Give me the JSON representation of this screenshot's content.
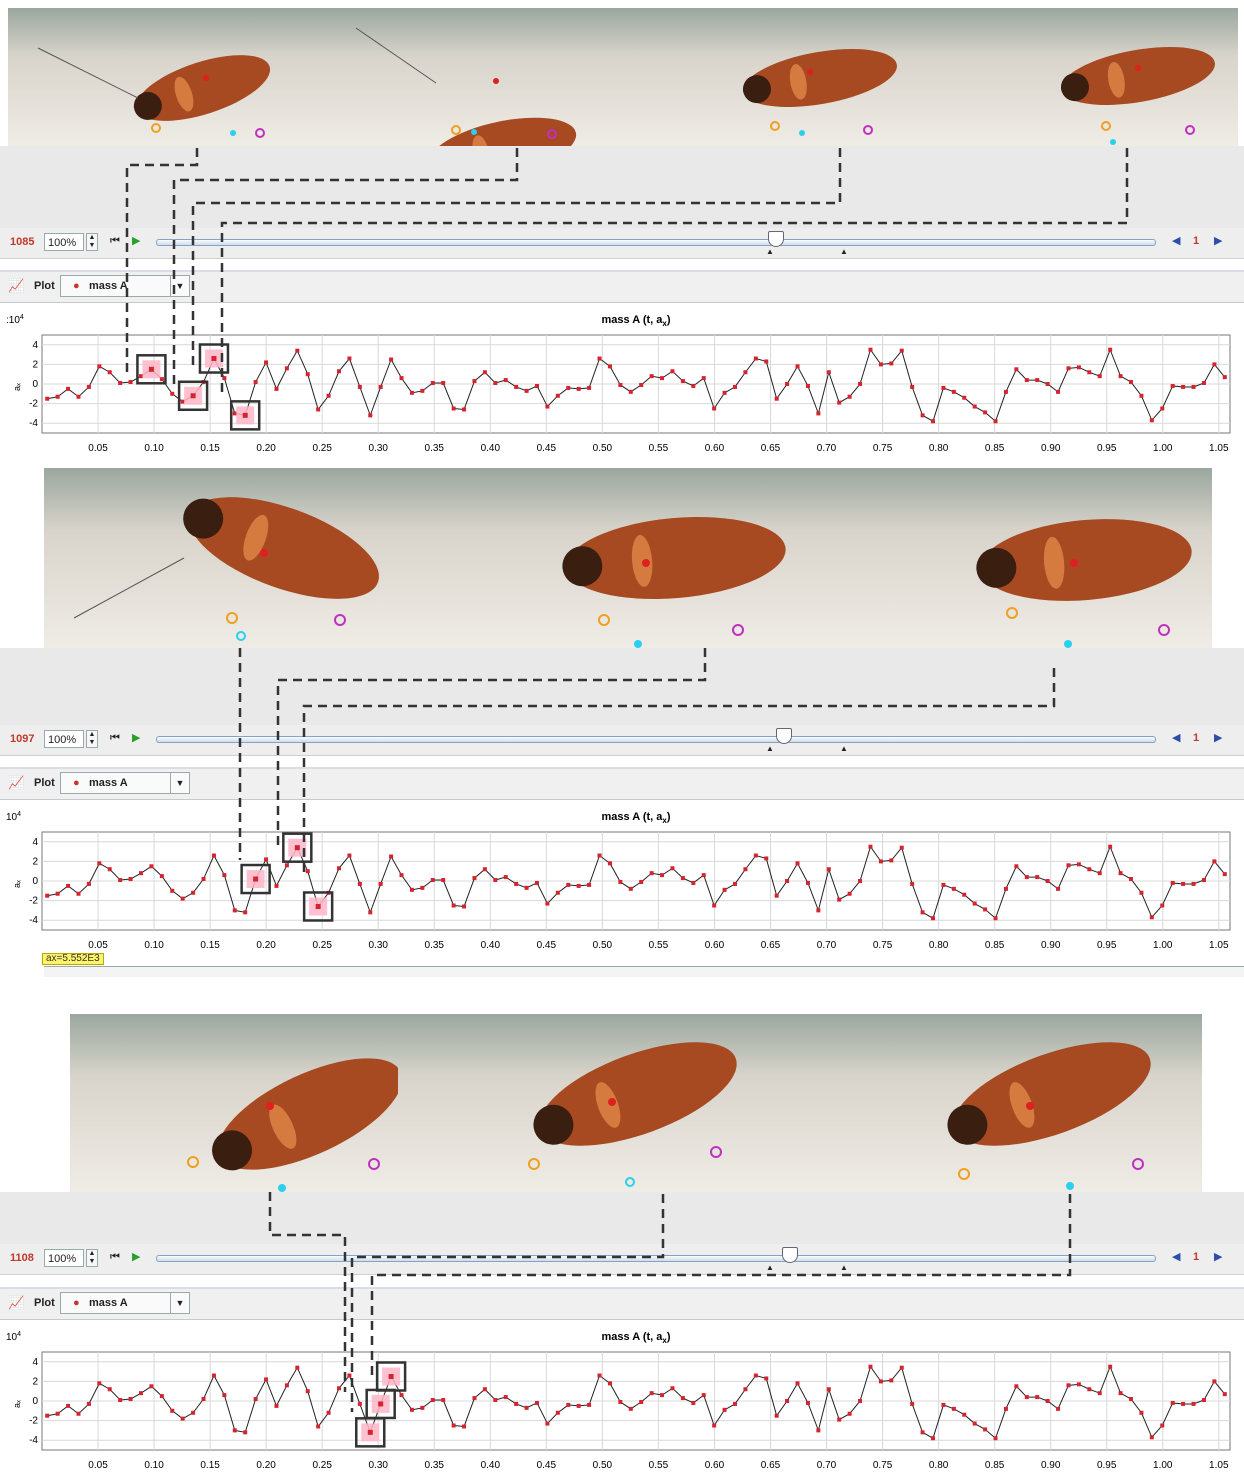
{
  "panels": [
    {
      "photos": 4,
      "frame": "1085",
      "zoom": "100%",
      "step": "1",
      "plot_label": "Plot",
      "series_selector": "mass A",
      "graph_title": "mass A (t, a",
      "graph_title_sub": "x",
      "graph_title_end": ")",
      "exponent_prefix": ":10",
      "exponent_sup": "4",
      "y_axis_label": "aₓ"
    },
    {
      "photos": 3,
      "frame": "1097",
      "zoom": "100%",
      "step": "1",
      "plot_label": "Plot",
      "series_selector": "mass A",
      "graph_title": "mass A (t, a",
      "graph_title_sub": "x",
      "graph_title_end": ")",
      "exponent_prefix": "10",
      "exponent_sup": "4",
      "y_axis_label": "aₓ",
      "tooltip": "ax=5.552E3"
    },
    {
      "photos": 3,
      "frame": "1108",
      "zoom": "100%",
      "step": "1",
      "plot_label": "Plot",
      "series_selector": "mass A",
      "graph_title": "mass A (t, a",
      "graph_title_sub": "x",
      "graph_title_end": ")",
      "exponent_prefix": "10",
      "exponent_sup": "4",
      "y_axis_label": "aₓ"
    }
  ],
  "icons": {
    "plot": "line-chart-icon",
    "first": "skip-to-start-icon",
    "play": "play-icon",
    "prev": "step-back-icon",
    "next": "step-forward-icon"
  },
  "colors": {
    "series": "#d3242f",
    "line": "#222222",
    "frame_number": "#c0392b",
    "highlight": "#ffb6c8"
  },
  "chart_data": [
    {
      "type": "line",
      "title": "mass A (t, aₓ)",
      "ylabel": "aₓ",
      "y_exponent": "10^4",
      "xlim": [
        0.0,
        1.06
      ],
      "ylim": [
        -5,
        5
      ],
      "xticks": [
        0.05,
        0.1,
        0.15,
        0.2,
        0.25,
        0.3,
        0.35,
        0.4,
        0.45,
        0.5,
        0.55,
        0.6,
        0.65,
        0.7,
        0.75,
        0.8,
        0.85,
        0.9,
        0.95,
        1.0,
        1.05
      ],
      "xtick_labels": [
        "0.05",
        "0.10",
        "0.15",
        "0.20",
        "0.25",
        "0.30",
        "0.35",
        "0.40",
        "0.45",
        "0.50",
        "0.55",
        "0.60",
        "0.65",
        "0.70",
        "0.75",
        "0.80",
        "0.85",
        "0.90",
        "0.95",
        "1.00",
        "1.05"
      ],
      "yticks": [
        -4,
        -2,
        0,
        2,
        4
      ],
      "ytick_labels": [
        "-4",
        "-2",
        "0",
        "2",
        "4"
      ],
      "grid": true,
      "highlight_x": [
        0.095,
        0.135,
        0.155,
        0.18
      ]
    },
    {
      "type": "line",
      "title": "mass A (t, aₓ)",
      "ylabel": "aₓ",
      "y_exponent": "10^4",
      "xlim": [
        0.0,
        1.06
      ],
      "ylim": [
        -5,
        5
      ],
      "xticks": [
        0.05,
        0.1,
        0.15,
        0.2,
        0.25,
        0.3,
        0.35,
        0.4,
        0.45,
        0.5,
        0.55,
        0.6,
        0.65,
        0.7,
        0.75,
        0.8,
        0.85,
        0.9,
        0.95,
        1.0,
        1.05
      ],
      "xtick_labels": [
        "0.05",
        "0.10",
        "0.15",
        "0.20",
        "0.25",
        "0.30",
        "0.35",
        "0.40",
        "0.45",
        "0.50",
        "0.55",
        "0.60",
        "0.65",
        "0.70",
        "0.75",
        "0.80",
        "0.85",
        "0.90",
        "0.95",
        "1.00",
        "1.05"
      ],
      "yticks": [
        -4,
        -2,
        0,
        2,
        4
      ],
      "ytick_labels": [
        "-4",
        "-2",
        "0",
        "2",
        "4"
      ],
      "grid": true,
      "highlight_x": [
        0.19,
        0.225,
        0.25
      ]
    },
    {
      "type": "line",
      "title": "mass A (t, aₓ)",
      "ylabel": "aₓ",
      "y_exponent": "10^4",
      "xlim": [
        0.0,
        1.06
      ],
      "ylim": [
        -5,
        5
      ],
      "xticks": [
        0.05,
        0.1,
        0.15,
        0.2,
        0.25,
        0.3,
        0.35,
        0.4,
        0.45,
        0.5,
        0.55,
        0.6,
        0.65,
        0.7,
        0.75,
        0.8,
        0.85,
        0.9,
        0.95,
        1.0,
        1.05
      ],
      "xtick_labels": [
        "0.05",
        "0.10",
        "0.15",
        "0.20",
        "0.25",
        "0.30",
        "0.35",
        "0.40",
        "0.45",
        "0.50",
        "0.55",
        "0.60",
        "0.65",
        "0.70",
        "0.75",
        "0.80",
        "0.85",
        "0.90",
        "0.95",
        "1.00",
        "1.05"
      ],
      "yticks": [
        -4,
        -2,
        0,
        2,
        4
      ],
      "ytick_labels": [
        "-4",
        "-2",
        "0",
        "2",
        "4"
      ],
      "grid": true,
      "highlight_x": [
        0.29,
        0.3,
        0.315
      ]
    }
  ],
  "series_y": [
    -1.5,
    -1.3,
    -0.5,
    -1.3,
    -0.3,
    1.8,
    1.2,
    0.1,
    0.2,
    0.8,
    1.5,
    0.5,
    -1.0,
    -1.8,
    -1.2,
    0.2,
    2.6,
    0.6,
    -3.0,
    -3.2,
    0.2,
    2.2,
    -0.5,
    1.6,
    3.4,
    1.0,
    -2.6,
    -1.2,
    1.3,
    2.6,
    -0.3,
    -3.2,
    -0.3,
    2.5,
    0.6,
    -0.9,
    -0.7,
    0.1,
    0.1,
    -2.5,
    -2.6,
    0.3,
    1.2,
    0.1,
    0.4,
    -0.3,
    -0.7,
    -0.2,
    -2.3,
    -1.2,
    -0.4,
    -0.5,
    -0.4,
    2.6,
    1.8,
    -0.1,
    -0.8,
    -0.1,
    0.8,
    0.6,
    1.3,
    0.3,
    -0.2,
    0.6,
    -2.5,
    -0.9,
    -0.3,
    1.2,
    2.6,
    2.3,
    -1.5,
    0.0,
    1.8,
    -0.2,
    -3.0,
    1.2,
    -1.9,
    -1.3,
    0.0,
    3.5,
    2.0,
    2.1,
    3.4,
    -0.3,
    -3.2,
    -3.8,
    -0.4,
    -0.8,
    -1.4,
    -2.3,
    -2.9,
    -3.8,
    -0.8,
    1.5,
    0.4,
    0.4,
    0.0,
    -0.8,
    1.6,
    1.7,
    1.2,
    0.8,
    3.5,
    0.8,
    0.2,
    -1.2,
    -3.7,
    -2.5,
    -0.2,
    -0.3,
    -0.3,
    0.1,
    2.0,
    0.7
  ]
}
